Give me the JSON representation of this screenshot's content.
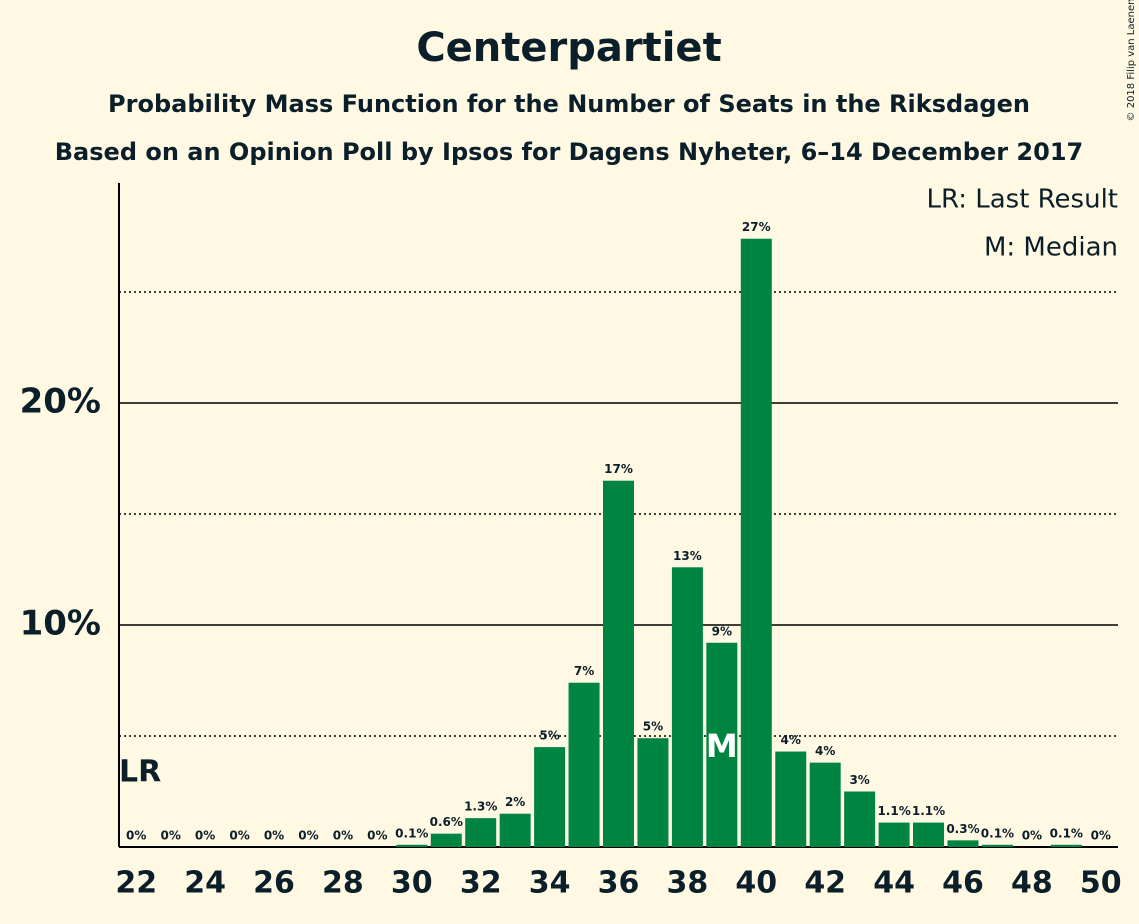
{
  "chart_data": {
    "type": "bar",
    "title": "Centerpartiet",
    "subtitle": "Probability Mass Function for the Number of Seats in the Riksdagen",
    "subtitle2": "Based on an Opinion Poll by Ipsos for Dagens Nyheter, 6–14 December 2017",
    "copyright": "© 2018 Filip van Laenen",
    "legend": [
      "LR: Last Result",
      "M: Median"
    ],
    "legend_corner": "top-right",
    "x": [
      22,
      23,
      24,
      25,
      26,
      27,
      28,
      29,
      30,
      31,
      32,
      33,
      34,
      35,
      36,
      37,
      38,
      39,
      40,
      41,
      42,
      43,
      44,
      45,
      46,
      47,
      48,
      49,
      50
    ],
    "values": [
      0,
      0,
      0,
      0,
      0,
      0,
      0,
      0,
      0.1,
      0.6,
      1.3,
      1.5,
      4.5,
      7.4,
      16.5,
      4.9,
      12.6,
      9.2,
      27.4,
      4.3,
      3.8,
      2.5,
      1.1,
      1.1,
      0.3,
      0.1,
      0,
      0.1,
      0
    ],
    "value_labels": [
      "0%",
      "0%",
      "0%",
      "0%",
      "0%",
      "0%",
      "0%",
      "0%",
      "0.1%",
      "0.6%",
      "1.3%",
      "2%",
      "5%",
      "7%",
      "17%",
      "5%",
      "13%",
      "9%",
      "27%",
      "4%",
      "4%",
      "3%",
      "1.1%",
      "1.1%",
      "0.3%",
      "0.1%",
      "0%",
      "0.1%",
      "0%"
    ],
    "color": "#008540",
    "xlim": [
      21.5,
      50.5
    ],
    "xticks": [
      22,
      24,
      26,
      28,
      30,
      32,
      34,
      36,
      38,
      40,
      42,
      44,
      46,
      48,
      50
    ],
    "ylim": [
      0,
      30
    ],
    "yticks": [
      {
        "value": 10,
        "label": "10%"
      },
      {
        "value": 20,
        "label": "20%"
      }
    ],
    "minor_yticks": [
      5,
      15,
      25
    ],
    "grid": true,
    "last_result": {
      "x": 22,
      "label": "LR"
    },
    "median": {
      "x": 39,
      "label": "M"
    }
  }
}
